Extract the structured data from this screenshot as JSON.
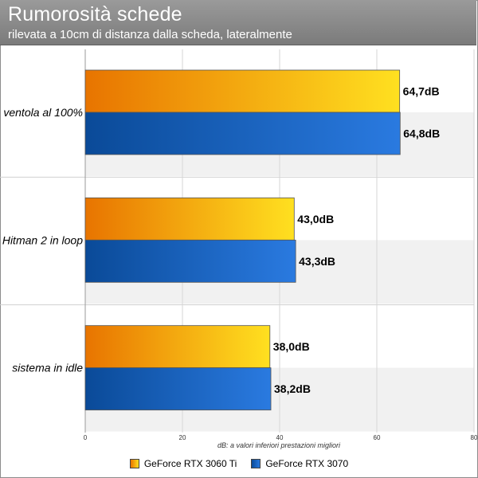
{
  "header": {
    "title": "Rumorosità schede",
    "subtitle": "rilevata a 10cm di distanza dalla scheda, lateralmente"
  },
  "chart_data": {
    "type": "bar",
    "orientation": "horizontal",
    "title": "Rumorosità schede",
    "subtitle": "rilevata a 10cm di distanza dalla scheda, lateralmente",
    "xlabel": "dB: a valori inferiori prestazioni migliori",
    "categories": [
      "ventola al 100%",
      "Hitman 2 in loop",
      "sistema in idle"
    ],
    "series": [
      {
        "name": "GeForce RTX 3060 Ti",
        "values": [
          64.7,
          43.0,
          38.0
        ],
        "labels": [
          "64,7dB",
          "43,0dB",
          "38,0dB"
        ],
        "color": "#f5a800"
      },
      {
        "name": "GeForce RTX 3070",
        "values": [
          64.8,
          43.3,
          38.2
        ],
        "labels": [
          "64,8dB",
          "43,3dB",
          "38,2dB"
        ],
        "color": "#1a5eb8"
      }
    ],
    "xlim": [
      0,
      80
    ],
    "xticks": [
      "0",
      "20",
      "40",
      "60",
      "80"
    ],
    "grid": true,
    "legend_position": "bottom"
  }
}
